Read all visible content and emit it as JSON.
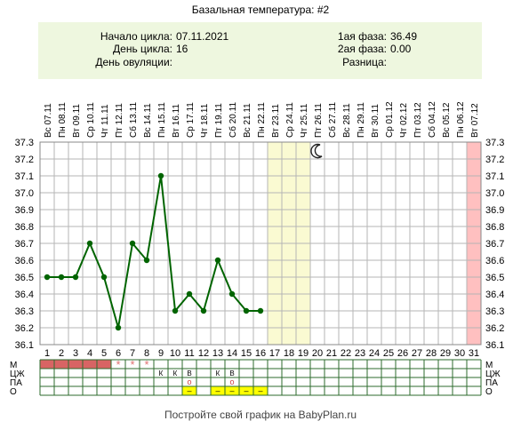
{
  "title": "Базальная температура: #2",
  "info": {
    "cycle_start_label": "Начало цикла:",
    "cycle_start": "07.11.2021",
    "cycle_day_label": "День цикла:",
    "cycle_day": "16",
    "ovulation_day_label": "День овуляции:",
    "ovulation_day": "",
    "phase1_label": "1ая фаза:",
    "phase1": "36.49",
    "phase2_label": "2ая фаза:",
    "phase2": "0.00",
    "difference_label": "Разница:",
    "difference": ""
  },
  "footer": "Постройте свой график на BabyPlan.ru",
  "colors": {
    "line": "#006400",
    "grid": "#b5b5b5",
    "highlight_yellow": "#fafad2",
    "highlight_red": "#ffc0c0",
    "menstruation": "#d86464",
    "asterisk": "#e07070",
    "o_cell": "#ffff00",
    "box": "#eef7df"
  },
  "chart_data": {
    "type": "line",
    "title": "Базальная температура: #2",
    "dates": [
      "Вс 07.11",
      "Пн 08.11",
      "Вт 09.11",
      "Ср 10.11",
      "Чт 11.11",
      "Пт 12.11",
      "Сб 13.11",
      "Вс 14.11",
      "Пн 15.11",
      "Вт 16.11",
      "Ср 17.11",
      "Чт 18.11",
      "Пт 19.11",
      "Сб 20.11",
      "Вс 21.11",
      "Пн 22.11",
      "Вт 23.11",
      "Ср 24.11",
      "Чт 25.11",
      "Пт 26.11",
      "Сб 27.11",
      "Вс 28.11",
      "Пн 29.11",
      "Вт 30.11",
      "Ср 01.12",
      "Чт 02.12",
      "Пт 03.12",
      "Сб 04.12",
      "Вс 05.12",
      "Пн 06.12",
      "Вт 07.12"
    ],
    "days": [
      1,
      2,
      3,
      4,
      5,
      6,
      7,
      8,
      9,
      10,
      11,
      12,
      13,
      14,
      15,
      16,
      17,
      18,
      19,
      20,
      21,
      22,
      23,
      24,
      25,
      26,
      27,
      28,
      29,
      30,
      31
    ],
    "y_ticks": [
      "36.1",
      "36.2",
      "36.3",
      "36.4",
      "36.5",
      "36.6",
      "36.7",
      "36.8",
      "36.9",
      "37.0",
      "37.1",
      "37.2",
      "37.3"
    ],
    "ylim": [
      36.1,
      37.3
    ],
    "series": [
      {
        "x": [
          1,
          2,
          3,
          4,
          5,
          6,
          7,
          8,
          9,
          10,
          11,
          12,
          13,
          14,
          15,
          16
        ],
        "values": [
          36.5,
          36.5,
          36.5,
          36.7,
          36.5,
          36.2,
          36.7,
          36.6,
          37.1,
          36.3,
          36.4,
          36.3,
          36.6,
          36.4,
          36.3,
          36.3
        ]
      }
    ],
    "highlight_days_yellow": [
      17,
      18,
      19
    ],
    "highlight_days_red": [
      31
    ],
    "moon_day": 20,
    "grid": true,
    "rows": {
      "labels": [
        "М",
        "ЦЖ",
        "ПА",
        "О"
      ],
      "menstruation_days": [
        1,
        2,
        3,
        4,
        5
      ],
      "asterisk_days": [
        6,
        7,
        8
      ],
      "asterisk_symbol": "*",
      "cervical_fluid": [
        {
          "day": 9,
          "mark": "К"
        },
        {
          "day": 10,
          "mark": "К"
        },
        {
          "day": 11,
          "mark": "В"
        },
        {
          "day": 13,
          "mark": "К"
        },
        {
          "day": 14,
          "mark": "В"
        }
      ],
      "intercourse_days": [
        11,
        14
      ],
      "intercourse_symbol": "o",
      "o_days": [
        11,
        13,
        14,
        15,
        16
      ],
      "o_symbol": "–"
    }
  }
}
